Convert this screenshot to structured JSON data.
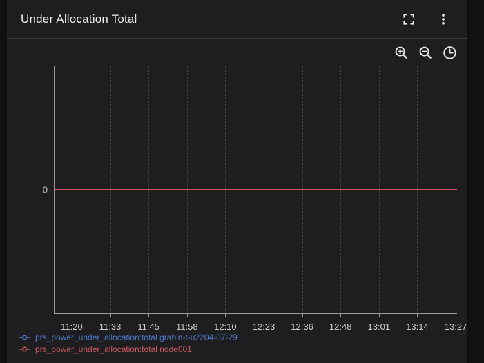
{
  "panel": {
    "title": "Under Allocation Total"
  },
  "colors": {
    "panel_bg": "#1e1e20",
    "frame_bg": "#111113",
    "divider": "#3a3a3c",
    "axis": "#9a9a9a",
    "gridline": "#3e3e40",
    "tick_label": "#cccccc",
    "icon": "#e8e8e8",
    "series_blue": "#4d78c8",
    "series_red": "#c4585c"
  },
  "icons": {
    "fullscreen": "fullscreen-expand",
    "menu": "kebab-menu",
    "zoom_in": "zoom-in-magnifier",
    "zoom_out": "zoom-out-magnifier",
    "time": "clock"
  },
  "chart_data": {
    "type": "line",
    "title": "Under Allocation Total",
    "xlabel": "",
    "ylabel": "",
    "x_ticks": [
      "11:20",
      "11:33",
      "11:45",
      "11:58",
      "12:10",
      "12:23",
      "12:36",
      "12:48",
      "13:01",
      "13:14",
      "13:27"
    ],
    "y_ticks": [
      "0"
    ],
    "grid": "dashed",
    "legend_position": "bottom-left",
    "series": [
      {
        "name": "prs_power_under_allocation:total grabin-t-u2204-07-29",
        "color": "#4d78c8",
        "value_constant": 0
      },
      {
        "name": "prs_power_under_allocation:total node001",
        "color": "#c4585c",
        "value_constant": 0
      }
    ]
  }
}
